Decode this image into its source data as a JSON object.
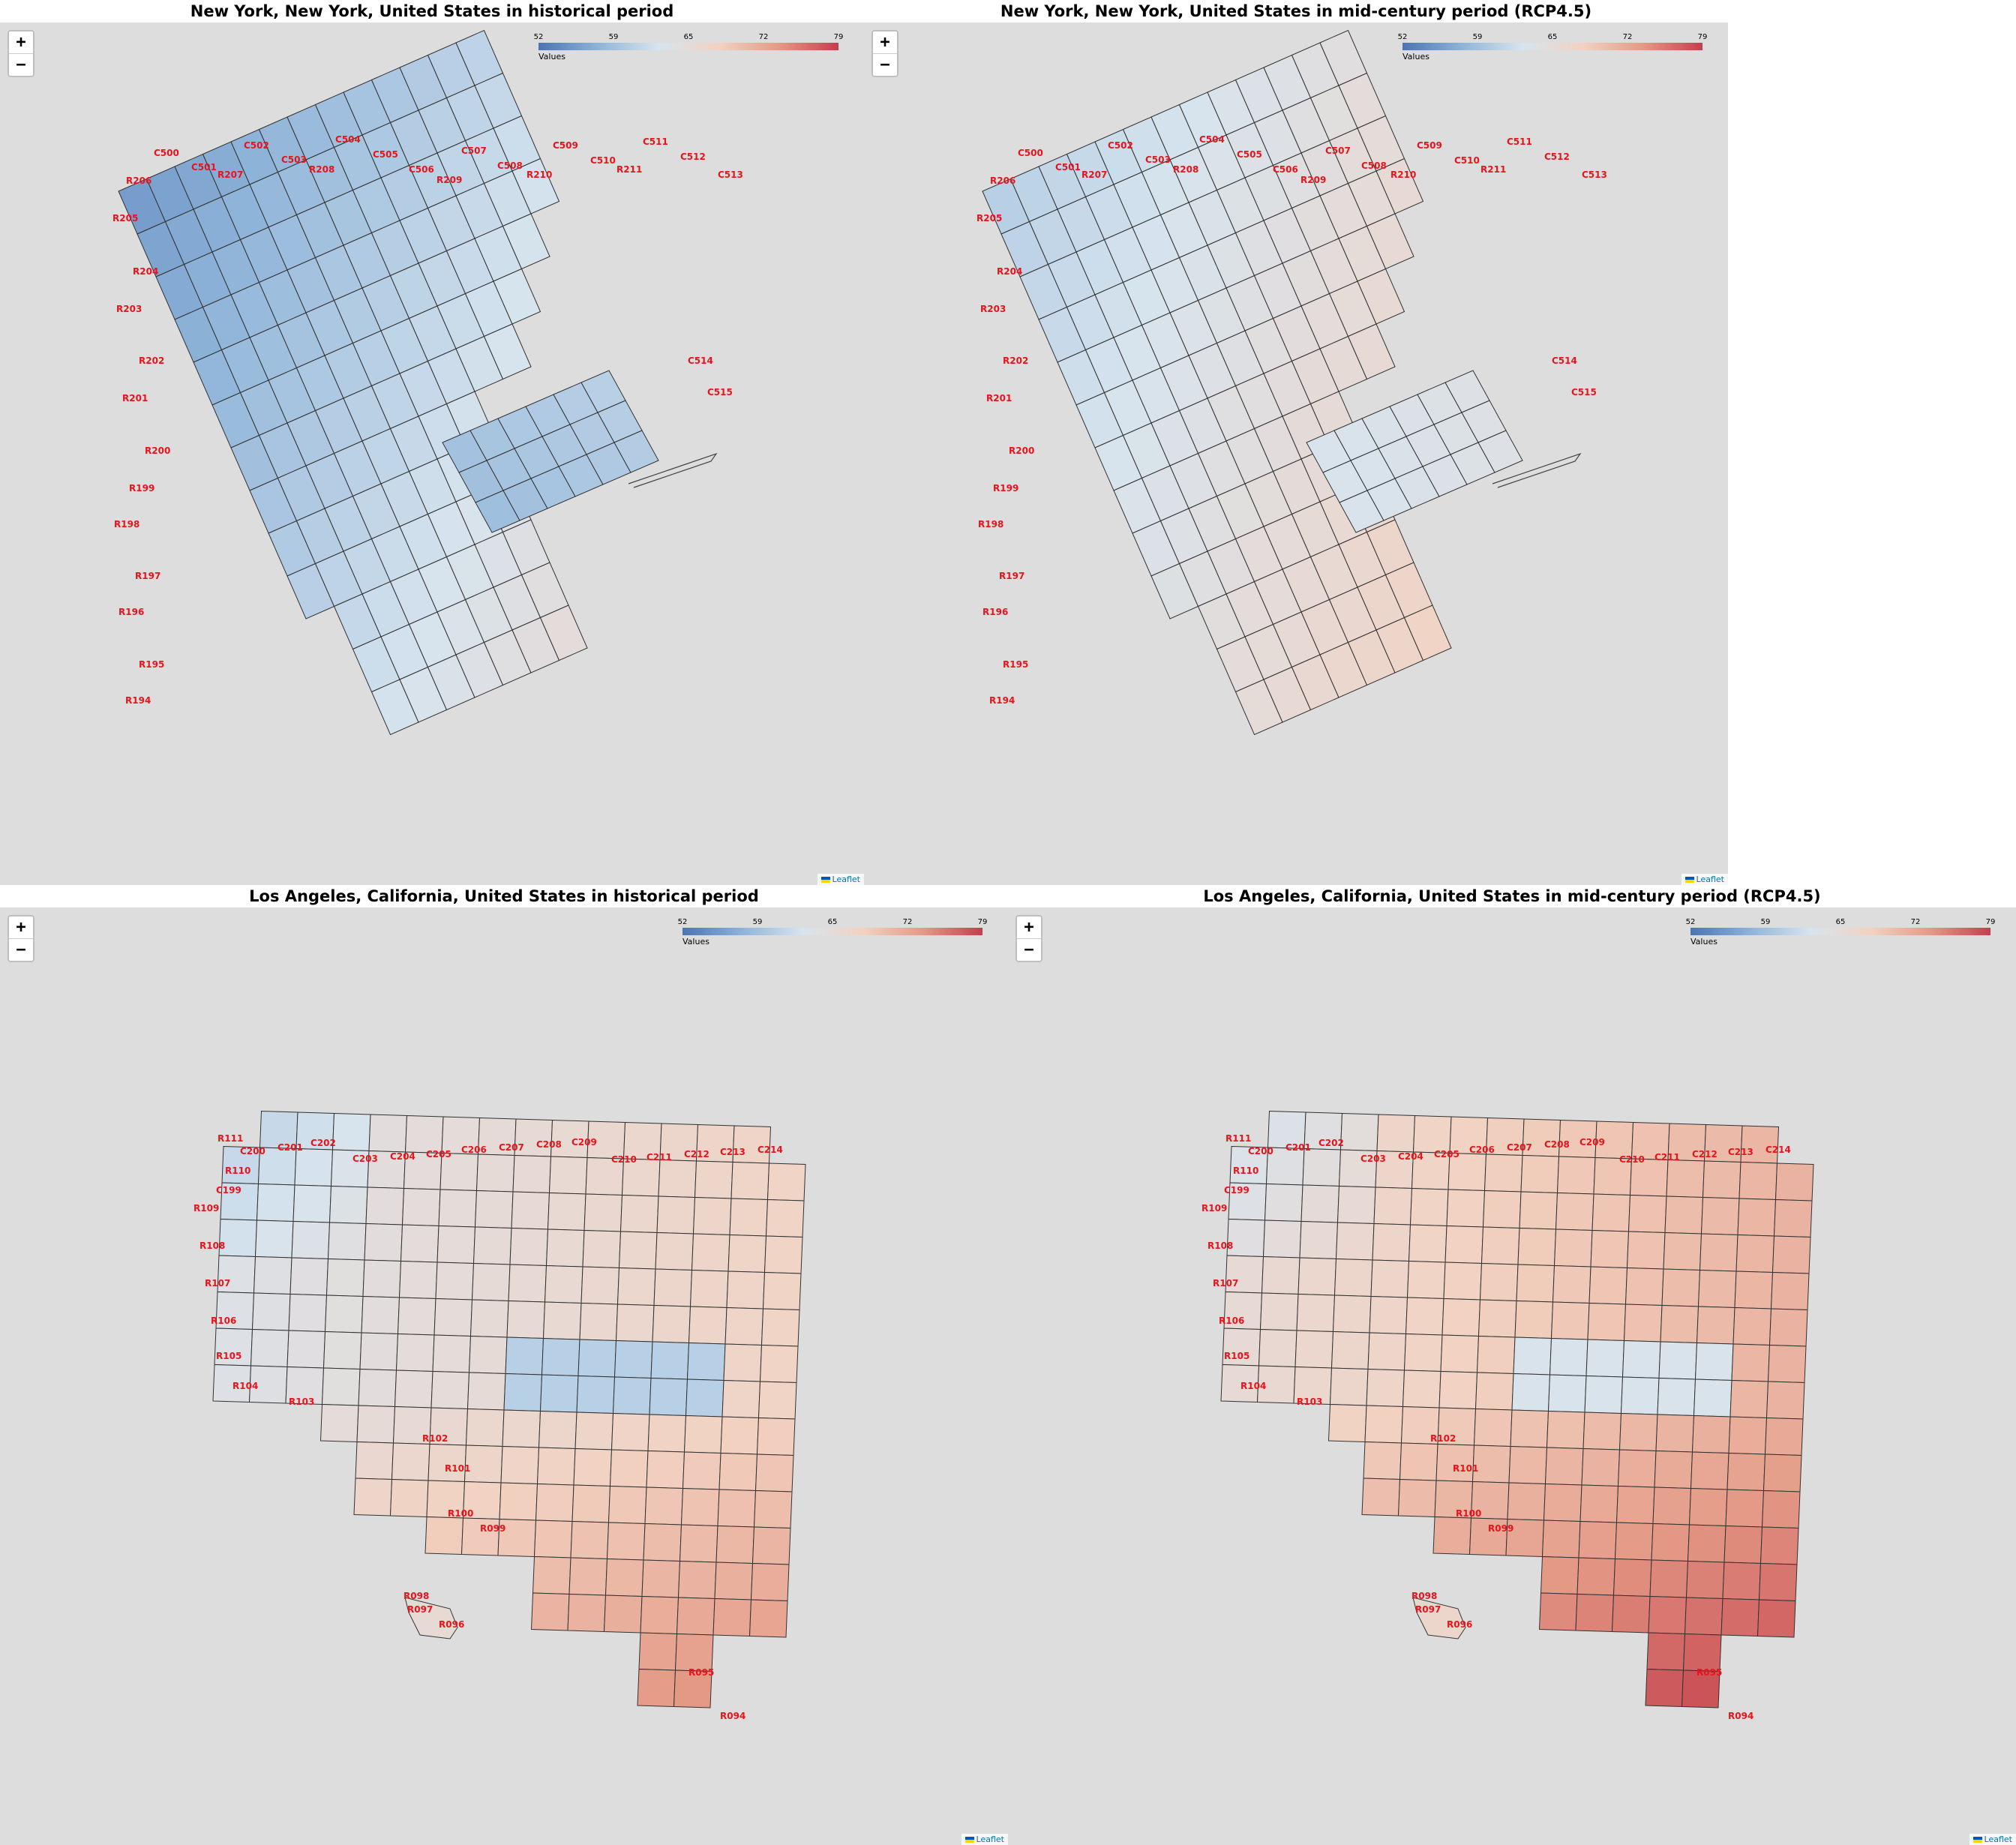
{
  "legend": {
    "ticks": [
      "52",
      "59",
      "65",
      "72",
      "79"
    ],
    "caption": "Values",
    "colors": [
      "#4a74b4",
      "#8fb4d9",
      "#d7e4ee",
      "#f2d2c2",
      "#e49a86",
      "#c43f4c"
    ],
    "min": 52,
    "max": 79
  },
  "zoom": {
    "in_label": "+",
    "out_label": "−"
  },
  "attribution": "Leaflet",
  "ny_labels": {
    "columns": [
      "C500",
      "C501",
      "C502",
      "C503",
      "C504",
      "C505",
      "C506",
      "C507",
      "C508",
      "C509",
      "C510",
      "C511",
      "C512",
      "C513",
      "C514",
      "C515"
    ],
    "rows": [
      "R194",
      "R195",
      "R196",
      "R197",
      "R198",
      "R199",
      "R200",
      "R201",
      "R202",
      "R203",
      "R204",
      "R205",
      "R206",
      "R207",
      "R208",
      "R209",
      "R210",
      "R211"
    ]
  },
  "la_labels": {
    "columns": [
      "C199",
      "C200",
      "C201",
      "C202",
      "C203",
      "C204",
      "C205",
      "C206",
      "C207",
      "C208",
      "C209",
      "C210",
      "C211",
      "C212",
      "C213",
      "C214"
    ],
    "rows": [
      "R094",
      "R095",
      "R096",
      "R097",
      "R098",
      "R099",
      "R100",
      "R101",
      "R102",
      "R103",
      "R104",
      "R105",
      "R106",
      "R107",
      "R108",
      "R109",
      "R110",
      "R111"
    ]
  },
  "panels": [
    {
      "title": "New York, New York, United States in historical period",
      "city": "ny",
      "period": "historical"
    },
    {
      "title": "New York, New York, United States in mid-century period (RCP4.5)",
      "city": "ny",
      "period": "mid"
    },
    {
      "title": "Los Angeles, California, United States in historical period",
      "city": "la",
      "period": "historical"
    },
    {
      "title": "Los Angeles, California, United States in mid-century period (RCP4.5)",
      "city": "la",
      "period": "mid"
    }
  ]
}
